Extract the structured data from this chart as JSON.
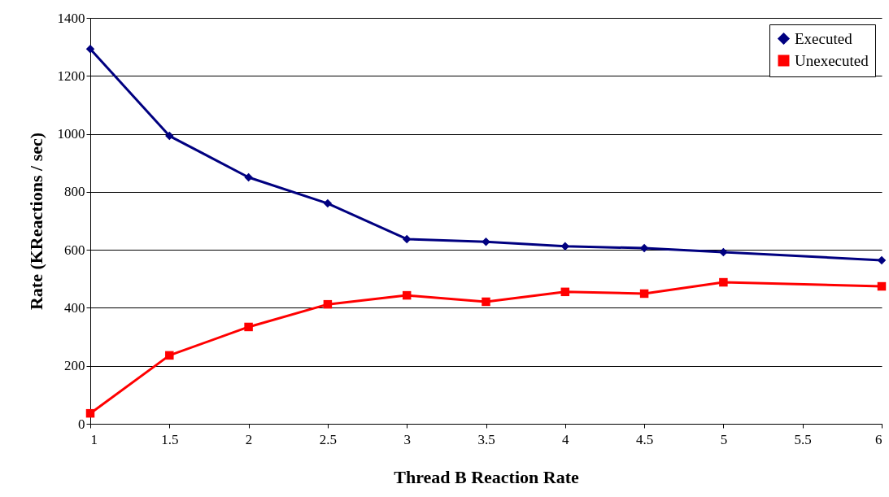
{
  "chart_data": {
    "type": "line",
    "xlabel": "Thread B Reaction Rate",
    "ylabel": "Rate (KReactions / sec)",
    "x": [
      1,
      1.5,
      2,
      2.5,
      3,
      3.5,
      4,
      4.5,
      5,
      6
    ],
    "series": [
      {
        "name": "Executed",
        "color": "#000080",
        "marker": "diamond",
        "values": [
          1293,
          993,
          850,
          760,
          637,
          628,
          612,
          606,
          592,
          564
        ]
      },
      {
        "name": "Unexecuted",
        "color": "#ff0000",
        "marker": "square",
        "values": [
          36,
          236,
          334,
          412,
          443,
          421,
          455,
          449,
          488,
          474
        ]
      }
    ],
    "xlim": [
      1,
      6
    ],
    "xticks": [
      1,
      1.5,
      2,
      2.5,
      3,
      3.5,
      4,
      4.5,
      5,
      5.5,
      6
    ],
    "ylim": [
      0,
      1400
    ],
    "yticks": [
      0,
      200,
      400,
      600,
      800,
      1000,
      1200,
      1400
    ],
    "grid": "y",
    "legend": "top right",
    "line_style": "solid"
  }
}
